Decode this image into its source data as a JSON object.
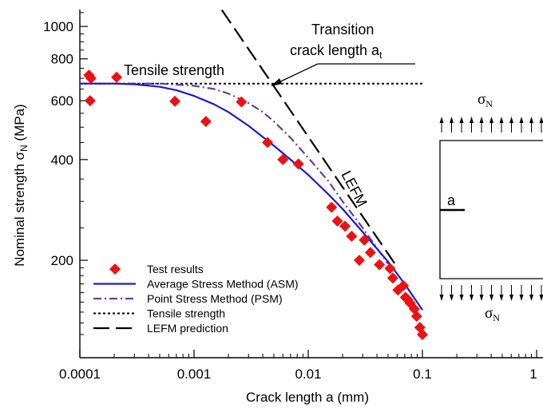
{
  "chart_data": {
    "type": "scatter",
    "xscale": "log",
    "yscale": "log",
    "xlim": [
      0.0001,
      1
    ],
    "ylim": [
      115,
      1120
    ],
    "xlabel": "Crack length a (mm)",
    "ylabel": "Nominal strength σ_N (MPa)",
    "ylabel_parts": {
      "main": "Nominal strength σ",
      "sub": "N",
      "tail": " (MPa)"
    },
    "xticks": [
      0.0001,
      0.001,
      0.01,
      0.1,
      1
    ],
    "xtick_labels": [
      "0.0001",
      "0.001",
      "0.01",
      "0.1",
      "1"
    ],
    "yticks": [
      200,
      400,
      600,
      800,
      1000
    ],
    "ytick_labels": [
      "200",
      "400",
      "600",
      "800",
      "1000"
    ],
    "colors": {
      "test": "#ee1111",
      "asm": "#1a1adc",
      "psm": "#6a3d9a",
      "black": "#000000"
    },
    "series": [
      {
        "name": "Test results",
        "style": "red-diamond-markers",
        "x": [
          0.00012,
          0.000125,
          0.00021,
          0.000123,
          0.00068,
          0.00127,
          0.0026,
          0.0044,
          0.006,
          0.0082,
          0.016,
          0.018,
          0.021,
          0.024,
          0.028,
          0.031,
          0.035,
          0.042,
          0.052,
          0.055,
          0.061,
          0.068,
          0.071,
          0.074,
          0.078,
          0.085,
          0.089,
          0.095,
          0.1
        ],
        "y": [
          715,
          700,
          705,
          600,
          598,
          520,
          595,
          450,
          400,
          388,
          288,
          262,
          253,
          236,
          200,
          230,
          211,
          194,
          189,
          177,
          163,
          168,
          155,
          153,
          149,
          143,
          136,
          126,
          120
        ]
      },
      {
        "name": "Average Stress Method (ASM)",
        "style": "solid-blue-line",
        "x": [
          0.0001,
          0.0002,
          0.0003,
          0.0005,
          0.0007,
          0.001,
          0.0015,
          0.002,
          0.003,
          0.005,
          0.007,
          0.01,
          0.015,
          0.02,
          0.03,
          0.05,
          0.07,
          0.1
        ],
        "y": [
          675,
          675,
          672,
          660,
          645,
          620,
          585,
          555,
          505,
          440,
          400,
          360,
          315,
          285,
          243,
          198,
          170,
          142
        ]
      },
      {
        "name": "Point Stress Method (PSM)",
        "style": "dash-dot-purple-line",
        "x": [
          0.0001,
          0.0005,
          0.001,
          0.0015,
          0.002,
          0.003,
          0.004,
          0.005,
          0.007,
          0.01,
          0.015,
          0.02,
          0.03,
          0.05
        ],
        "y": [
          675,
          675,
          665,
          650,
          630,
          590,
          555,
          520,
          465,
          405,
          345,
          300,
          250,
          195
        ]
      },
      {
        "name": "Tensile strength",
        "style": "short-dotted-black-line",
        "x": [
          0.0001,
          0.1
        ],
        "y": [
          675,
          675
        ]
      },
      {
        "name": "LEFM prediction",
        "style": "long-dashed-black-line",
        "x": [
          0.00175,
          0.06
        ],
        "y": [
          1120,
          191
        ]
      }
    ],
    "annotations": {
      "tensile_strength": "Tensile strength",
      "transition_line1": "Transition",
      "transition_line2": "crack length a",
      "transition_sub": "t",
      "lefm": "LEFM"
    },
    "legend": {
      "position": "bottom-left",
      "entries": [
        "Test results",
        "Average Stress Method (ASM)",
        "Point Stress Method (PSM)",
        "Tensile strength",
        "LEFM prediction"
      ]
    },
    "specimen": {
      "sigma": "σ",
      "sigma_sub": "N",
      "crack_label": "a"
    }
  }
}
